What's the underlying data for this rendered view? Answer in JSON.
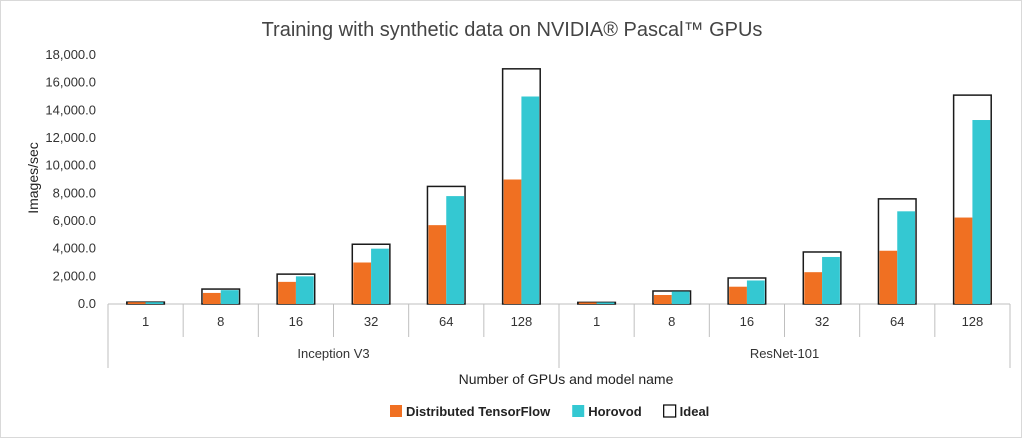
{
  "chart_data": {
    "type": "bar",
    "title": "Training with synthetic data on NVIDIA® Pascal™ GPUs",
    "xlabel": "Number of GPUs and model name",
    "ylabel": "Images/sec",
    "ylim": [
      0,
      18000
    ],
    "yticks": [
      "0.0",
      "2,000.0",
      "4,000.0",
      "6,000.0",
      "8,000.0",
      "10,000.0",
      "12,000.0",
      "14,000.0",
      "16,000.0",
      "18,000.0"
    ],
    "groups": [
      {
        "name": "Inception V3",
        "categories": [
          "1",
          "8",
          "16",
          "32",
          "64",
          "128"
        ],
        "series": [
          {
            "name": "Distributed TensorFlow",
            "values": [
              130,
              800,
              1600,
              3000,
              5700,
              9000
            ]
          },
          {
            "name": "Horovod",
            "values": [
              130,
              1000,
              2000,
              4000,
              7800,
              15000
            ]
          },
          {
            "name": "Ideal",
            "values": [
              135,
              1080,
              2160,
              4320,
              8500,
              17000
            ]
          }
        ]
      },
      {
        "name": "ResNet-101",
        "categories": [
          "1",
          "8",
          "16",
          "32",
          "64",
          "128"
        ],
        "series": [
          {
            "name": "Distributed TensorFlow",
            "values": [
              110,
              650,
              1250,
              2300,
              3850,
              6250
            ]
          },
          {
            "name": "Horovod",
            "values": [
              110,
              900,
              1700,
              3400,
              6700,
              13300
            ]
          },
          {
            "name": "Ideal",
            "values": [
              117,
              940,
              1880,
              3760,
              7600,
              15100
            ]
          }
        ]
      }
    ],
    "legend": {
      "position": "bottom",
      "entries": [
        {
          "name": "Distributed TensorFlow",
          "color": "#f07022"
        },
        {
          "name": "Horovod",
          "color": "#34c8d2"
        },
        {
          "name": "Ideal",
          "color": "#ffffff",
          "stroke": "#000000"
        }
      ]
    },
    "grid": false
  }
}
